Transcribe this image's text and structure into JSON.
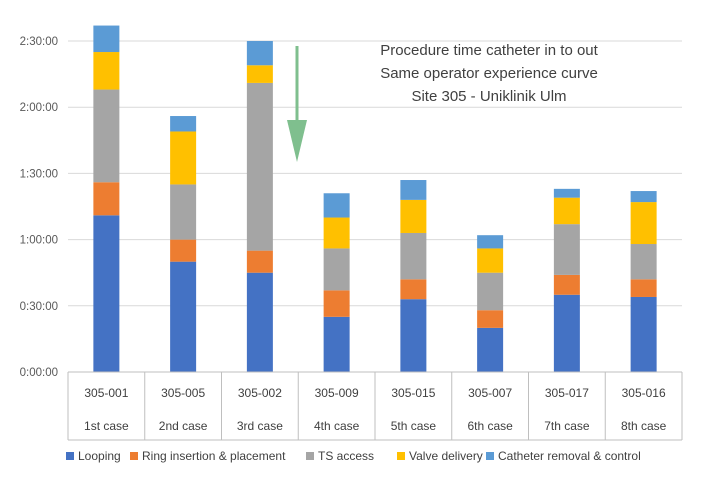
{
  "chart_data": {
    "type": "bar",
    "stacked": true,
    "title_lines": [
      "Procedure time catheter in to out",
      "Same operator experience curve",
      "Site 305 - Uniklinik Ulm"
    ],
    "categories": [
      {
        "id": "305-001",
        "case": "1st case"
      },
      {
        "id": "305-005",
        "case": "2nd case"
      },
      {
        "id": "305-002",
        "case": "3rd case"
      },
      {
        "id": "305-009",
        "case": "4th case"
      },
      {
        "id": "305-015",
        "case": "5th case"
      },
      {
        "id": "305-007",
        "case": "6th case"
      },
      {
        "id": "305-017",
        "case": "7th case"
      },
      {
        "id": "305-016",
        "case": "8th case"
      }
    ],
    "y_unit": "minutes",
    "ylim": [
      0,
      150
    ],
    "y_ticks": [
      {
        "value": 0,
        "label": "0:00:00"
      },
      {
        "value": 30,
        "label": "0:30:00"
      },
      {
        "value": 60,
        "label": "1:00:00"
      },
      {
        "value": 90,
        "label": "1:30:00"
      },
      {
        "value": 120,
        "label": "2:00:00"
      },
      {
        "value": 150,
        "label": "2:30:00"
      }
    ],
    "series": [
      {
        "name": "Looping",
        "color": "#4472C4",
        "values": [
          71,
          50,
          45,
          25,
          33,
          20,
          35,
          34
        ]
      },
      {
        "name": "Ring insertion & placement",
        "color": "#ED7D31",
        "values": [
          15,
          10,
          10,
          12,
          9,
          8,
          9,
          8
        ]
      },
      {
        "name": "TS access",
        "color": "#A5A5A5",
        "values": [
          42,
          25,
          76,
          19,
          21,
          17,
          23,
          16
        ]
      },
      {
        "name": "Valve delivery",
        "color": "#FFC000",
        "values": [
          17,
          24,
          8,
          14,
          15,
          11,
          12,
          19
        ]
      },
      {
        "name": "Catheter removal & control",
        "color": "#5B9BD5",
        "values": [
          12,
          7,
          11,
          11,
          9,
          6,
          4,
          5
        ]
      }
    ],
    "grid": true,
    "legend_position": "bottom",
    "annotation": {
      "type": "arrow",
      "color": "#7FBF8E"
    }
  }
}
